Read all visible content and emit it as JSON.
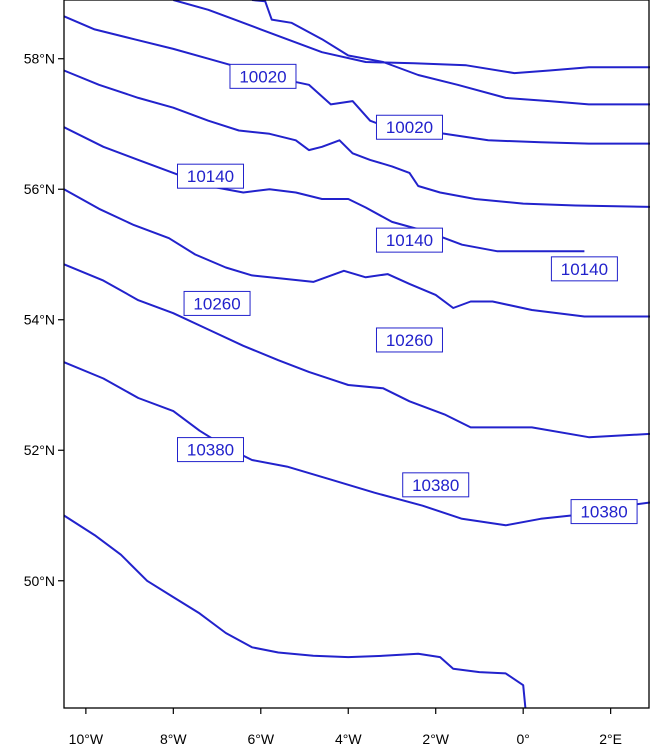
{
  "chart_data": {
    "type": "line",
    "title": "",
    "xlabel": "",
    "ylabel": "",
    "xlim": [
      -10.5,
      2.9
    ],
    "ylim": [
      48.05,
      58.9
    ],
    "x_ticks": [
      {
        "value": -10,
        "label": "10°W"
      },
      {
        "value": -8,
        "label": "8°W"
      },
      {
        "value": -6,
        "label": "6°W"
      },
      {
        "value": -4,
        "label": "4°W"
      },
      {
        "value": -2,
        "label": "2°W"
      },
      {
        "value": 0,
        "label": "0°"
      },
      {
        "value": 2,
        "label": "2°E"
      }
    ],
    "y_ticks": [
      {
        "value": 50,
        "label": "50°N"
      },
      {
        "value": 52,
        "label": "52°N"
      },
      {
        "value": 54,
        "label": "54°N"
      },
      {
        "value": 56,
        "label": "56°N"
      },
      {
        "value": 58,
        "label": "58°N"
      }
    ],
    "line_color": "#2222cc",
    "series": [
      {
        "points": [
          [
            -8.0,
            58.9
          ],
          [
            -7.2,
            58.75
          ],
          [
            -6.6,
            58.6
          ],
          [
            -6.0,
            58.45
          ],
          [
            -5.4,
            58.3
          ],
          [
            -4.6,
            58.1
          ],
          [
            -3.6,
            57.95
          ],
          [
            -2.5,
            57.93
          ],
          [
            -1.3,
            57.9
          ],
          [
            -0.2,
            57.78
          ],
          [
            0.6,
            57.82
          ],
          [
            1.5,
            57.87
          ],
          [
            2.9,
            57.87
          ]
        ]
      },
      {
        "points": [
          [
            -6.2,
            58.9
          ],
          [
            -5.9,
            58.88
          ],
          [
            -5.75,
            58.6
          ],
          [
            -5.3,
            58.55
          ],
          [
            -4.6,
            58.3
          ],
          [
            -4.0,
            58.05
          ],
          [
            -3.2,
            57.95
          ],
          [
            -2.4,
            57.75
          ],
          [
            -1.5,
            57.6
          ],
          [
            -0.4,
            57.4
          ],
          [
            0.6,
            57.35
          ],
          [
            1.5,
            57.3
          ],
          [
            2.9,
            57.3
          ]
        ]
      },
      {
        "points": [
          [
            -10.5,
            58.65
          ],
          [
            -9.8,
            58.45
          ],
          [
            -8.9,
            58.3
          ],
          [
            -8.0,
            58.15
          ],
          [
            -7.2,
            58.0
          ],
          [
            -6.3,
            57.83
          ],
          [
            -5.6,
            57.7
          ],
          [
            -4.9,
            57.6
          ],
          [
            -4.4,
            57.3
          ],
          [
            -3.9,
            57.35
          ],
          [
            -3.5,
            57.05
          ],
          [
            -3.3,
            57.0
          ],
          [
            -2.8,
            56.95
          ],
          [
            -1.8,
            56.85
          ],
          [
            -0.8,
            56.75
          ],
          [
            0.4,
            56.72
          ],
          [
            1.5,
            56.7
          ],
          [
            2.9,
            56.7
          ]
        ]
      },
      {
        "points": [
          [
            -10.5,
            57.82
          ],
          [
            -9.7,
            57.6
          ],
          [
            -8.8,
            57.4
          ],
          [
            -8.0,
            57.25
          ],
          [
            -7.2,
            57.05
          ],
          [
            -6.5,
            56.9
          ],
          [
            -5.8,
            56.85
          ],
          [
            -5.2,
            56.75
          ],
          [
            -4.9,
            56.6
          ],
          [
            -4.6,
            56.65
          ],
          [
            -4.2,
            56.75
          ],
          [
            -3.9,
            56.55
          ],
          [
            -3.5,
            56.45
          ],
          [
            -3.0,
            56.35
          ],
          [
            -2.6,
            56.25
          ],
          [
            -2.4,
            56.05
          ],
          [
            -1.9,
            55.95
          ],
          [
            -1.1,
            55.85
          ],
          [
            0.0,
            55.78
          ],
          [
            1.2,
            55.75
          ],
          [
            2.9,
            55.73
          ]
        ]
      },
      {
        "points": [
          [
            -10.5,
            56.95
          ],
          [
            -9.6,
            56.65
          ],
          [
            -8.8,
            56.45
          ],
          [
            -8.0,
            56.25
          ],
          [
            -7.2,
            56.05
          ],
          [
            -6.4,
            55.95
          ],
          [
            -5.8,
            56.0
          ],
          [
            -5.2,
            55.95
          ],
          [
            -4.6,
            55.85
          ],
          [
            -4.0,
            55.85
          ],
          [
            -3.6,
            55.72
          ],
          [
            -3.0,
            55.5
          ],
          [
            -2.2,
            55.35
          ],
          [
            -1.4,
            55.15
          ],
          [
            -0.6,
            55.05
          ],
          [
            0.4,
            55.05
          ],
          [
            1.4,
            55.05
          ]
        ]
      },
      {
        "points": [
          [
            -10.5,
            56.0
          ],
          [
            -9.7,
            55.7
          ],
          [
            -8.9,
            55.45
          ],
          [
            -8.1,
            55.25
          ],
          [
            -7.5,
            55.0
          ],
          [
            -6.8,
            54.8
          ],
          [
            -6.2,
            54.68
          ],
          [
            -5.5,
            54.63
          ],
          [
            -4.8,
            54.58
          ],
          [
            -4.1,
            54.75
          ],
          [
            -3.6,
            54.65
          ],
          [
            -3.1,
            54.7
          ],
          [
            -2.6,
            54.55
          ],
          [
            -2.0,
            54.38
          ],
          [
            -1.6,
            54.18
          ],
          [
            -1.2,
            54.28
          ],
          [
            -0.7,
            54.28
          ],
          [
            0.2,
            54.15
          ],
          [
            1.4,
            54.05
          ],
          [
            2.9,
            54.05
          ]
        ]
      },
      {
        "points": [
          [
            -10.5,
            54.85
          ],
          [
            -9.6,
            54.6
          ],
          [
            -8.8,
            54.3
          ],
          [
            -8.0,
            54.1
          ],
          [
            -7.2,
            53.85
          ],
          [
            -6.4,
            53.6
          ],
          [
            -5.6,
            53.38
          ],
          [
            -4.9,
            53.2
          ],
          [
            -4.0,
            53.0
          ],
          [
            -3.2,
            52.95
          ],
          [
            -2.6,
            52.75
          ],
          [
            -1.8,
            52.55
          ],
          [
            -1.2,
            52.35
          ],
          [
            0.2,
            52.35
          ],
          [
            1.5,
            52.2
          ],
          [
            2.9,
            52.25
          ]
        ]
      },
      {
        "points": [
          [
            -10.5,
            53.35
          ],
          [
            -9.6,
            53.1
          ],
          [
            -8.8,
            52.8
          ],
          [
            -8.0,
            52.6
          ],
          [
            -7.4,
            52.3
          ],
          [
            -6.8,
            52.05
          ],
          [
            -6.2,
            51.85
          ],
          [
            -5.4,
            51.75
          ],
          [
            -4.4,
            51.55
          ],
          [
            -3.4,
            51.35
          ],
          [
            -2.3,
            51.15
          ],
          [
            -1.4,
            50.95
          ],
          [
            -0.4,
            50.85
          ],
          [
            0.4,
            50.95
          ],
          [
            1.1,
            51.0
          ],
          [
            1.8,
            51.1
          ],
          [
            2.9,
            51.2
          ]
        ]
      },
      {
        "points": [
          [
            -10.5,
            51.0
          ],
          [
            -9.8,
            50.7
          ],
          [
            -9.2,
            50.4
          ],
          [
            -8.6,
            50.0
          ],
          [
            -8.0,
            49.75
          ],
          [
            -7.4,
            49.5
          ],
          [
            -6.8,
            49.2
          ],
          [
            -6.2,
            48.98
          ],
          [
            -5.6,
            48.9
          ],
          [
            -4.8,
            48.85
          ],
          [
            -4.0,
            48.83
          ],
          [
            -3.2,
            48.85
          ],
          [
            -2.4,
            48.88
          ],
          [
            -1.9,
            48.83
          ],
          [
            -1.6,
            48.65
          ],
          [
            -1.0,
            48.6
          ],
          [
            -0.4,
            48.58
          ],
          [
            0.0,
            48.4
          ],
          [
            0.05,
            48.05
          ]
        ]
      }
    ],
    "contour_labels": [
      {
        "text": "10020",
        "x": -5.95,
        "y": 57.73
      },
      {
        "text": "10020",
        "x": -2.6,
        "y": 56.95
      },
      {
        "text": "10140",
        "x": -7.15,
        "y": 56.2
      },
      {
        "text": "10140",
        "x": -2.6,
        "y": 55.22
      },
      {
        "text": "10140",
        "x": 1.4,
        "y": 54.78
      },
      {
        "text": "10260",
        "x": -7.0,
        "y": 54.25
      },
      {
        "text": "10260",
        "x": -2.6,
        "y": 53.69
      },
      {
        "text": "10380",
        "x": -7.15,
        "y": 52.01
      },
      {
        "text": "10380",
        "x": -2.0,
        "y": 51.47
      },
      {
        "text": "10380",
        "x": 1.85,
        "y": 51.06
      }
    ]
  }
}
